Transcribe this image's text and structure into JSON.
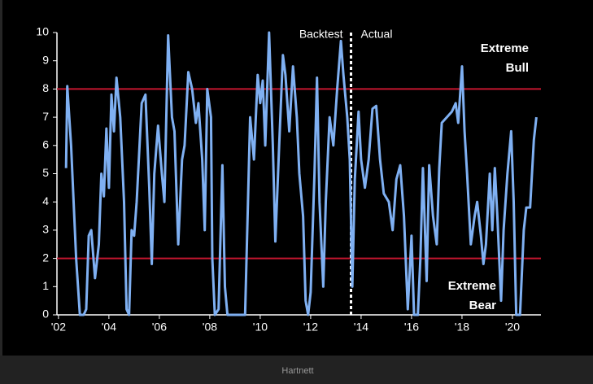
{
  "chart_data": {
    "type": "line",
    "caption": "Hartnett",
    "x": [
      2002.3,
      2002.35,
      2002.5,
      2002.7,
      2002.85,
      2003.0,
      2003.1,
      2003.2,
      2003.3,
      2003.45,
      2003.6,
      2003.7,
      2003.8,
      2003.9,
      2004.0,
      2004.1,
      2004.2,
      2004.3,
      2004.45,
      2004.6,
      2004.7,
      2004.8,
      2004.9,
      2005.0,
      2005.1,
      2005.3,
      2005.45,
      2005.6,
      2005.7,
      2005.8,
      2005.95,
      2006.1,
      2006.2,
      2006.35,
      2006.5,
      2006.6,
      2006.75,
      2006.9,
      2007.0,
      2007.15,
      2007.3,
      2007.45,
      2007.55,
      2007.7,
      2007.8,
      2007.9,
      2008.05,
      2008.1,
      2008.2,
      2008.35,
      2008.5,
      2008.6,
      2008.7,
      2009.4,
      2009.5,
      2009.6,
      2009.75,
      2009.9,
      2010.0,
      2010.1,
      2010.2,
      2010.35,
      2010.5,
      2010.6,
      2010.75,
      2010.9,
      2011.0,
      2011.15,
      2011.3,
      2011.45,
      2011.55,
      2011.7,
      2011.8,
      2011.9,
      2012.0,
      2012.15,
      2012.25,
      2012.35,
      2012.5,
      2012.6,
      2012.75,
      2012.9,
      2013.05,
      2013.2,
      2013.3,
      2013.45,
      2013.55,
      2013.65,
      2013.75,
      2013.9,
      2014.0,
      2014.15,
      2014.3,
      2014.45,
      2014.6,
      2014.75,
      2014.9,
      2015.1,
      2015.25,
      2015.4,
      2015.55,
      2015.7,
      2015.85,
      2016.0,
      2016.1,
      2016.25,
      2016.35,
      2016.45,
      2016.6,
      2016.7,
      2016.85,
      2017.0,
      2017.1,
      2017.2,
      2017.4,
      2017.6,
      2017.75,
      2017.85,
      2018.0,
      2018.1,
      2018.2,
      2018.35,
      2018.5,
      2018.6,
      2018.75,
      2018.85,
      2018.95,
      2019.1,
      2019.2,
      2019.3,
      2019.4,
      2019.55,
      2019.65,
      2019.8,
      2019.95,
      2020.05,
      2020.15,
      2020.3,
      2020.45,
      2020.55,
      2020.7,
      2020.85,
      2020.95
    ],
    "series": [
      {
        "color": "#7fb0f2",
        "values": [
          5.2,
          8.1,
          6,
          2,
          0,
          0,
          0.2,
          2.8,
          3,
          1.3,
          2.5,
          5,
          4.2,
          6.6,
          4.5,
          7.8,
          6.5,
          8.4,
          7,
          4,
          0.2,
          0,
          3,
          2.8,
          4,
          7.5,
          7.8,
          4.5,
          1.8,
          5,
          6.7,
          5,
          4,
          9.9,
          7,
          6.5,
          2.5,
          5.5,
          6,
          8.6,
          8,
          6.8,
          7.5,
          5.5,
          3,
          8,
          7,
          2,
          0,
          0.2,
          5.3,
          1,
          0,
          0,
          3.5,
          7,
          5.5,
          8.5,
          7.5,
          8.3,
          6,
          10,
          6,
          2.6,
          6,
          9.2,
          8.5,
          6.5,
          8.8,
          7,
          5,
          3.5,
          0.5,
          0,
          0.8,
          5,
          8.4,
          4,
          1,
          4,
          7,
          6,
          8,
          9.7,
          8.5,
          7,
          5.5,
          1,
          4.8,
          7.2,
          5.5,
          4.5,
          5.5,
          7.3,
          7.4,
          5.5,
          4.3,
          4,
          3,
          4.8,
          5.3,
          3.5,
          0.2,
          2.8,
          0,
          0,
          2,
          5.2,
          1.2,
          5.3,
          3.5,
          2.5,
          5.2,
          6.8,
          7,
          7.2,
          7.5,
          6.8,
          8.8,
          6.5,
          5,
          2.5,
          3.5,
          4,
          2.8,
          1.8,
          2.5,
          5,
          3,
          5.2,
          3.5,
          0.5,
          3,
          5,
          6.5,
          4,
          0,
          0,
          3,
          3.8,
          3.8,
          6.2,
          7
        ]
      }
    ],
    "xlim": [
      2001.94,
      2021.13
    ],
    "xticks": [
      {
        "value": 2002,
        "label": "'02"
      },
      {
        "value": 2004,
        "label": "'04"
      },
      {
        "value": 2006,
        "label": "'06"
      },
      {
        "value": 2008,
        "label": "'08"
      },
      {
        "value": 2010,
        "label": "'10"
      },
      {
        "value": 2012,
        "label": "'12"
      },
      {
        "value": 2014,
        "label": "'14"
      },
      {
        "value": 2016,
        "label": "'16"
      },
      {
        "value": 2018,
        "label": "'18"
      },
      {
        "value": 2020,
        "label": "'20"
      }
    ],
    "ylim": [
      0,
      10
    ],
    "yticks": [
      0,
      1,
      2,
      3,
      4,
      5,
      6,
      7,
      8,
      9,
      10
    ],
    "hlines": [
      8,
      2
    ],
    "hline_color": "#c4162f",
    "vline": 2013.6,
    "annotations": [
      [
        "Backtest"
      ],
      [
        "Actual"
      ],
      [
        "Extreme",
        "Bull"
      ],
      [
        "Extreme",
        "Bear"
      ]
    ]
  }
}
